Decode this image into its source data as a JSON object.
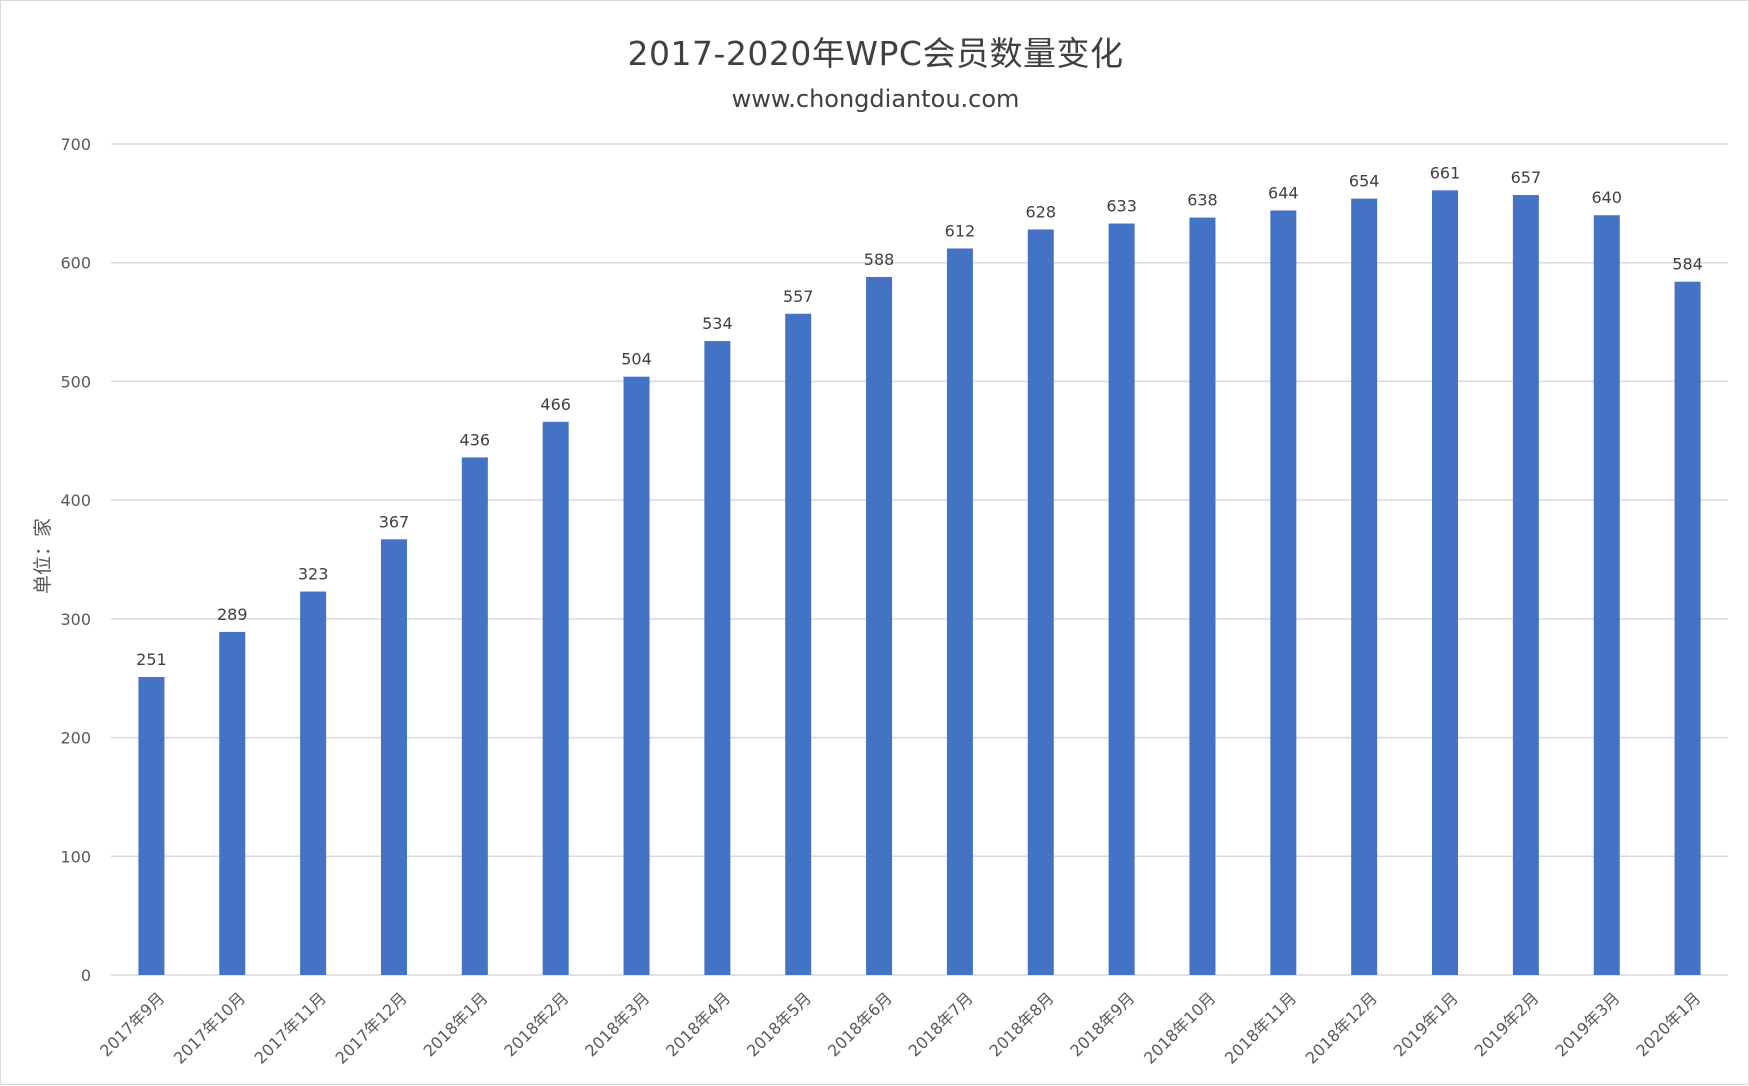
{
  "chart_data": {
    "type": "bar",
    "title": "2017-2020年WPC会员数量变化",
    "subtitle": "www.chongdiantou.com",
    "ylabel": "单位：家",
    "ylim": [
      0,
      700
    ],
    "yticks": [
      0,
      100,
      200,
      300,
      400,
      500,
      600,
      700
    ],
    "grid": true,
    "legend": "none",
    "categories": [
      "2017年9月",
      "2017年10月",
      "2017年11月",
      "2017年12月",
      "2018年1月",
      "2018年2月",
      "2018年3月",
      "2018年4月",
      "2018年5月",
      "2018年6月",
      "2018年7月",
      "2018年8月",
      "2018年9月",
      "2018年10月",
      "2018年11月",
      "2018年12月",
      "2019年1月",
      "2019年2月",
      "2019年3月",
      "2020年1月"
    ],
    "values": [
      251,
      289,
      323,
      367,
      436,
      466,
      504,
      534,
      557,
      588,
      612,
      628,
      633,
      638,
      644,
      654,
      661,
      657,
      640,
      584
    ],
    "bar_color": "#4472c4",
    "grid_color": "#d9d9d9"
  }
}
